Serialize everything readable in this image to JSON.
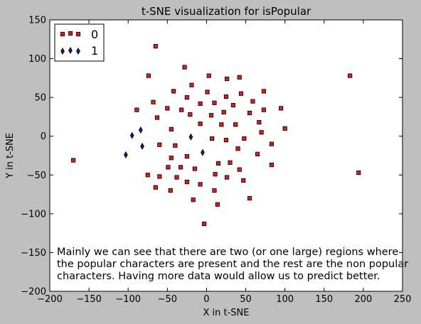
{
  "chart_data": {
    "type": "scatter",
    "title": "t-SNE visualization for isPopular",
    "xlabel": "X in t-SNE",
    "ylabel": "Y in t-SNE",
    "xlim": [
      -200,
      250
    ],
    "ylim": [
      -200,
      150
    ],
    "xticks": [
      -200,
      -150,
      -100,
      -50,
      0,
      50,
      100,
      150,
      200,
      250
    ],
    "yticks": [
      -200,
      -150,
      -100,
      -50,
      0,
      50,
      100,
      150
    ],
    "grid": false,
    "legend_position": "top-left",
    "annotation": [
      "Mainly we can see that there are two (or one large) regions where",
      "the popular characters are present and the rest are the non popular",
      "characters. Having more data would allow us to predict better."
    ],
    "series": [
      {
        "name": "0",
        "marker": "square",
        "color": "#d62020",
        "points": [
          [
            -65,
            116
          ],
          [
            -74,
            78
          ],
          [
            -28,
            89
          ],
          [
            3,
            78
          ],
          [
            26,
            74
          ],
          [
            42,
            76
          ],
          [
            -19,
            66
          ],
          [
            -42,
            58
          ],
          [
            -25,
            50
          ],
          [
            1,
            57
          ],
          [
            25,
            51
          ],
          [
            44,
            55
          ],
          [
            73,
            58
          ],
          [
            -68,
            44
          ],
          [
            -8,
            42
          ],
          [
            10,
            43
          ],
          [
            59,
            45
          ],
          [
            34,
            40
          ],
          [
            -89,
            34
          ],
          [
            -50,
            36
          ],
          [
            -32,
            34
          ],
          [
            -21,
            28
          ],
          [
            22,
            31
          ],
          [
            55,
            30
          ],
          [
            6,
            27
          ],
          [
            73,
            34
          ],
          [
            95,
            36
          ],
          [
            -63,
            24
          ],
          [
            -8,
            16
          ],
          [
            19,
            15
          ],
          [
            37,
            15
          ],
          [
            67,
            18
          ],
          [
            -45,
            9
          ],
          [
            100,
            10
          ],
          [
            70,
            5
          ],
          [
            7,
            -3
          ],
          [
            25,
            -5
          ],
          [
            48,
            -3
          ],
          [
            -60,
            -11
          ],
          [
            -40,
            -12
          ],
          [
            -45,
            -28
          ],
          [
            -25,
            -26
          ],
          [
            40,
            -16
          ],
          [
            83,
            -10
          ],
          [
            65,
            -23
          ],
          [
            -170,
            -31
          ],
          [
            -49,
            -40
          ],
          [
            -33,
            -40
          ],
          [
            -15,
            -42
          ],
          [
            15,
            -35
          ],
          [
            30,
            -34
          ],
          [
            -75,
            -50
          ],
          [
            -60,
            -52
          ],
          [
            -38,
            -53
          ],
          [
            -25,
            -59
          ],
          [
            11,
            -49
          ],
          [
            26,
            -53
          ],
          [
            42,
            -43
          ],
          [
            47,
            -57
          ],
          [
            83,
            -37
          ],
          [
            -65,
            -66
          ],
          [
            -46,
            -70
          ],
          [
            -8,
            -62
          ],
          [
            10,
            -70
          ],
          [
            -17,
            -82
          ],
          [
            55,
            -80
          ],
          [
            14,
            -88
          ],
          [
            -3,
            -113
          ],
          [
            183,
            78
          ],
          [
            194,
            -47
          ]
        ]
      },
      {
        "name": "1",
        "marker": "thin_diamond",
        "color": "#1a1a8c",
        "points": [
          [
            -95,
            1
          ],
          [
            -84,
            8
          ],
          [
            -82,
            -13
          ],
          [
            -103,
            -24
          ],
          [
            -20,
            -1
          ],
          [
            -5,
            -21
          ]
        ]
      }
    ]
  }
}
